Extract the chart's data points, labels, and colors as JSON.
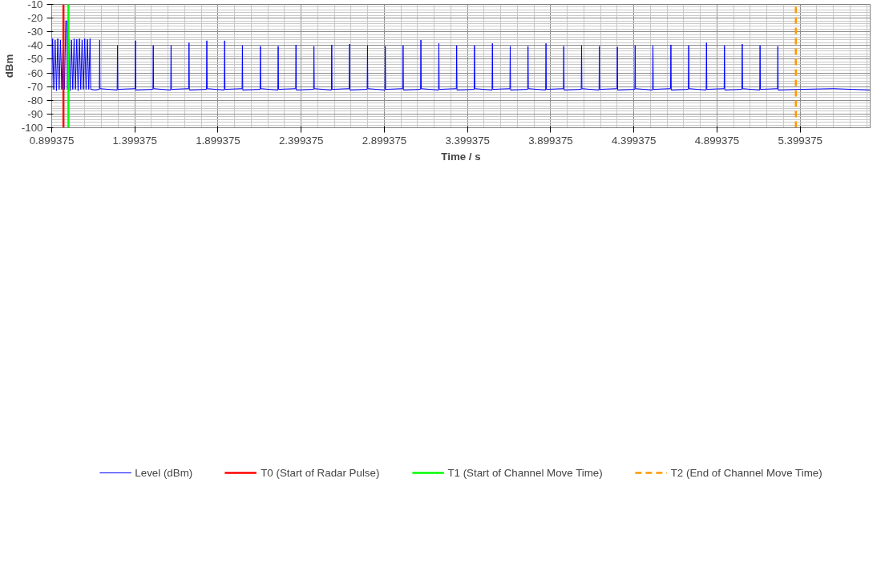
{
  "chart_data": {
    "type": "line",
    "xlabel": "Time / s",
    "ylabel": "dBm",
    "xlim": [
      0.899375,
      5.82
    ],
    "xticks": [
      0.899375,
      1.399375,
      1.899375,
      2.399375,
      2.899375,
      3.399375,
      3.899375,
      4.399375,
      4.899375,
      5.399375
    ],
    "ylim": [
      -100,
      -10
    ],
    "yticks": [
      -100,
      -90,
      -80,
      -70,
      -60,
      -50,
      -40,
      -30,
      -20,
      -10
    ],
    "grid": true,
    "legend": "bottom",
    "marker": "none",
    "line_style": "solid",
    "series": [
      {
        "name": "Level (dBm)",
        "color": "#0000ff",
        "x": [
          0.9,
          0.905,
          0.912,
          0.92,
          0.928,
          0.936,
          0.944,
          0.952,
          0.96,
          0.968,
          0.976,
          0.984,
          0.99,
          0.994,
          1.002,
          1.01,
          1.018,
          1.026,
          1.034,
          1.042,
          1.05,
          1.058,
          1.066,
          1.074,
          1.082,
          1.09,
          1.098,
          1.106,
          1.114,
          1.122,
          1.13,
          1.134,
          1.16,
          1.186,
          1.188,
          1.19,
          1.293,
          1.295,
          1.297,
          1.401,
          1.403,
          1.405,
          1.508,
          1.51,
          1.512,
          1.615,
          1.617,
          1.619,
          1.723,
          1.725,
          1.727,
          1.83,
          1.832,
          1.834,
          1.937,
          1.939,
          1.941,
          2.044,
          2.046,
          2.048,
          2.152,
          2.154,
          2.156,
          2.259,
          2.261,
          2.263,
          2.366,
          2.368,
          2.37,
          2.474,
          2.476,
          2.478,
          2.581,
          2.583,
          2.585,
          2.688,
          2.69,
          2.692,
          2.796,
          2.798,
          2.8,
          2.903,
          2.905,
          2.907,
          3.01,
          3.012,
          3.014,
          3.117,
          3.119,
          3.121,
          3.225,
          3.227,
          3.229,
          3.332,
          3.334,
          3.336,
          3.439,
          3.441,
          3.443,
          3.547,
          3.549,
          3.551,
          3.654,
          3.656,
          3.658,
          3.761,
          3.763,
          3.765,
          3.869,
          3.871,
          3.873,
          3.976,
          3.978,
          3.98,
          4.083,
          4.085,
          4.087,
          4.19,
          4.192,
          4.194,
          4.298,
          4.3,
          4.302,
          4.405,
          4.407,
          4.409,
          4.512,
          4.514,
          4.516,
          4.62,
          4.622,
          4.624,
          4.727,
          4.729,
          4.731,
          4.834,
          4.836,
          4.838,
          4.942,
          4.944,
          4.946,
          5.049,
          5.051,
          5.053,
          5.156,
          5.158,
          5.16,
          5.263,
          5.265,
          5.267,
          5.4,
          5.6,
          5.82
        ],
        "values": [
          -72,
          -35,
          -72,
          -36,
          -73,
          -35,
          -72,
          -36,
          -72,
          -35,
          -72,
          -22,
          -22,
          -72,
          -35,
          -73,
          -36,
          -72,
          -35,
          -72,
          -35.5,
          -73,
          -35,
          -72,
          -36,
          -72,
          -35,
          -72,
          -35.5,
          -72,
          -35,
          -72,
          -72.5,
          -72,
          -36,
          -71.5,
          -72.5,
          -40,
          -72,
          -71.5,
          -36.5,
          -72.5,
          -72,
          -40,
          -71.5,
          -72.5,
          -40,
          -72,
          -71.5,
          -38,
          -72.5,
          -72,
          -36.5,
          -71.5,
          -72.5,
          -36.5,
          -72,
          -71.5,
          -40,
          -72.5,
          -72,
          -40.5,
          -71.5,
          -72.5,
          -40.5,
          -72,
          -71.5,
          -39.5,
          -72.5,
          -72,
          -40.5,
          -71.5,
          -72.5,
          -39.5,
          -72,
          -71.5,
          -39,
          -72.5,
          -72,
          -40,
          -71.5,
          -72.5,
          -40.5,
          -72,
          -71.5,
          -40,
          -72.5,
          -72,
          -36,
          -71.5,
          -72.5,
          -38.5,
          -72,
          -71.5,
          -40,
          -72.5,
          -72,
          -40,
          -71.5,
          -72.5,
          -38.5,
          -72,
          -71.5,
          -40.5,
          -72.5,
          -72,
          -40.5,
          -71.5,
          -72.5,
          -38.5,
          -72,
          -71.5,
          -40.5,
          -72.5,
          -72,
          -40,
          -71.5,
          -72.5,
          -40.5,
          -72,
          -71.5,
          -41,
          -72.5,
          -72,
          -40,
          -71.5,
          -72.5,
          -40,
          -72,
          -71.5,
          -39.5,
          -72.5,
          -72,
          -40,
          -71.5,
          -72.5,
          -38,
          -72,
          -71.5,
          -40,
          -72.5,
          -72,
          -39,
          -71.5,
          -72.5,
          -40,
          -72,
          -71.5,
          -40.5,
          -72.5,
          -72,
          -71.5,
          -72.5
        ]
      }
    ],
    "ref_lines": [
      {
        "axis": "x",
        "value": 0.97,
        "label": "T0 (Start of Radar Pulse)",
        "color": "#ff0000",
        "line_style": "solid"
      },
      {
        "axis": "x",
        "value": 1.0,
        "label": "T1 (Start of Channel Move Time)",
        "color": "#00ff00",
        "line_style": "solid"
      },
      {
        "axis": "x",
        "value": 5.373,
        "label": "T2 (End of Channel Move Time)",
        "color": "#ff9900",
        "line_style": "dashed"
      }
    ]
  }
}
